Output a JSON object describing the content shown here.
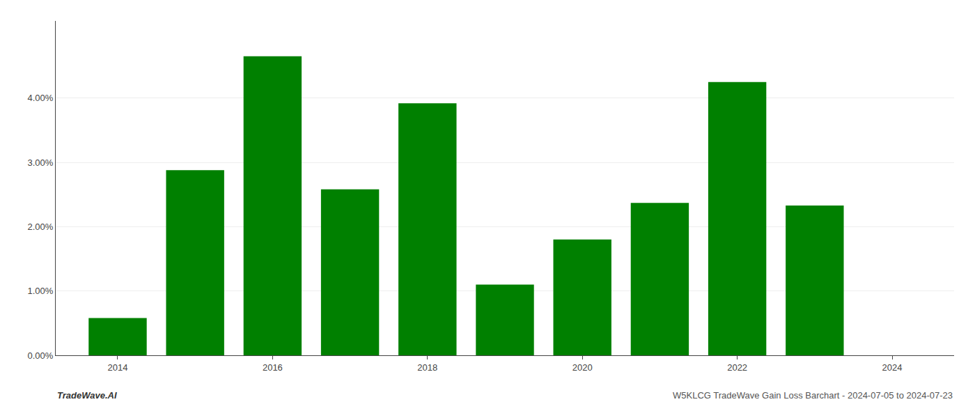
{
  "chart_data": {
    "type": "bar",
    "x": [
      2014,
      2015,
      2016,
      2017,
      2018,
      2019,
      2020,
      2021,
      2022,
      2023
    ],
    "values": [
      0.0058,
      0.0288,
      0.0465,
      0.0258,
      0.0392,
      0.011,
      0.018,
      0.0237,
      0.0425,
      0.0233
    ],
    "color": "#008000",
    "ylim": [
      0,
      0.052
    ],
    "yticks": [
      {
        "value": 0.0,
        "label": "0.00%"
      },
      {
        "value": 0.01,
        "label": "1.00%"
      },
      {
        "value": 0.02,
        "label": "2.00%"
      },
      {
        "value": 0.03,
        "label": "3.00%"
      },
      {
        "value": 0.04,
        "label": "4.00%"
      }
    ],
    "xlim": [
      2013.2,
      2024.8
    ],
    "xticks": [
      2014,
      2016,
      2018,
      2020,
      2022,
      2024
    ],
    "grid": true,
    "annotations": [
      "TradeWave.AI",
      "W5KLCG TradeWave Gain Loss Barchart - 2024-07-05 to 2024-07-23"
    ]
  }
}
